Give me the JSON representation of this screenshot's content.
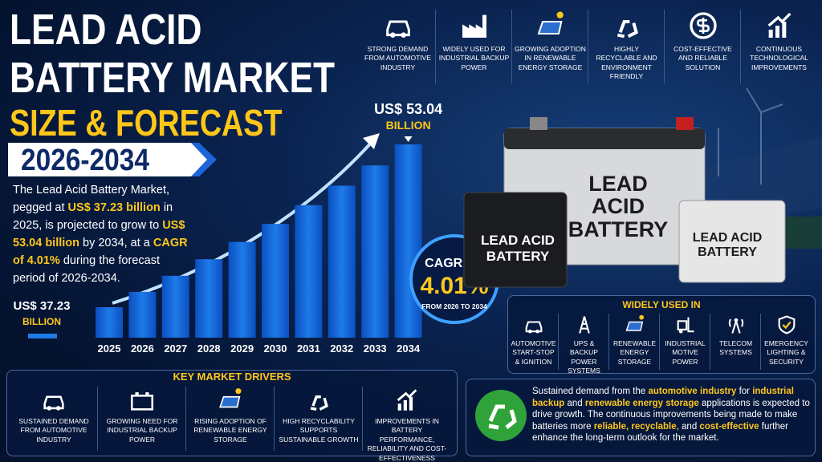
{
  "title": {
    "line1": "LEAD ACID",
    "line2": "BATTERY MARKET",
    "line3": "SIZE & FORECAST",
    "period": "2026-2034"
  },
  "intro": [
    {
      "text": "The Lead Acid Battery Market, pegged at ",
      "highlight": false
    },
    {
      "text": "US$ 37.23 billion",
      "highlight": true
    },
    {
      "text": " in 2025, is projected to grow to ",
      "highlight": false
    },
    {
      "text": "US$ 53.04 billion",
      "highlight": true
    },
    {
      "text": " by 2034, at a ",
      "highlight": false
    },
    {
      "text": "CAGR of 4.01%",
      "highlight": true
    },
    {
      "text": " during the forecast period of 2026-2034.",
      "highlight": false
    }
  ],
  "chart_data": {
    "type": "bar",
    "categories": [
      "2025",
      "2026",
      "2027",
      "2028",
      "2029",
      "2030",
      "2031",
      "2032",
      "2033",
      "2034"
    ],
    "values": [
      37.23,
      38.72,
      40.28,
      41.89,
      43.57,
      45.32,
      47.14,
      49.03,
      51.0,
      53.04
    ],
    "value_labels": [
      "US$ 37.23",
      null,
      null,
      null,
      null,
      null,
      null,
      null,
      null,
      "US$ 53.04"
    ],
    "unit": "BILLION",
    "color": "#1e7be8"
  },
  "cagr": {
    "heading": "CAGR OF",
    "value": "4.01%",
    "note": "FROM 2026 TO 2034"
  },
  "top_features": [
    "STRONG DEMAND FROM AUTOMOTIVE INDUSTRY",
    "WIDELY USED FOR INDUSTRIAL BACKUP POWER",
    "GROWING ADOPTION IN RENEWABLE ENERGY STORAGE",
    "HIGHLY RECYCLABLE AND ENVIRONMENT FRIENDLY",
    "COST-EFFECTIVE AND RELIABLE SOLUTION",
    "CONTINUOUS TECHNOLOGICAL IMPROVEMENTS"
  ],
  "batteries": {
    "large": "LEAD ACID BATTERY",
    "medium": "LEAD ACID BATTERY",
    "small": "LEAD ACID BATTERY"
  },
  "applications": {
    "heading": "WIDELY USED IN",
    "items": [
      "AUTOMOTIVE START-STOP & IGNITION",
      "UPS & BACKUP POWER SYSTEMS",
      "RENEWABLE ENERGY STORAGE",
      "INDUSTRIAL MOTIVE POWER",
      "TELECOM SYSTEMS",
      "EMERGENCY LIGHTING & SECURITY"
    ]
  },
  "drivers": {
    "heading": "KEY MARKET DRIVERS",
    "items": [
      "SUSTAINED DEMAND FROM AUTOMOTIVE INDUSTRY",
      "GROWING NEED FOR INDUSTRIAL BACKUP POWER",
      "RISING ADOPTION OF RENEWABLE ENERGY STORAGE",
      "HIGH RECYCLABILITY SUPPORTS SUSTAINABLE GROWTH",
      "IMPROVEMENTS IN BATTERY PERFORMANCE, RELIABILITY AND COST-EFFECTIVENESS"
    ]
  },
  "summary": [
    {
      "text": "Sustained demand from the ",
      "highlight": false
    },
    {
      "text": "automotive industry",
      "highlight": true
    },
    {
      "text": " for ",
      "highlight": false
    },
    {
      "text": "industrial backup",
      "highlight": true
    },
    {
      "text": " and ",
      "highlight": false
    },
    {
      "text": "renewable energy storage",
      "highlight": true
    },
    {
      "text": " applications is expected to drive growth. The continuous improvements being made to make batteries more ",
      "highlight": false
    },
    {
      "text": "reliable, recyclable",
      "highlight": true
    },
    {
      "text": ", and ",
      "highlight": false
    },
    {
      "text": "cost-effective",
      "highlight": true
    },
    {
      "text": " further enhance the long-term outlook for the market.",
      "highlight": false
    }
  ]
}
